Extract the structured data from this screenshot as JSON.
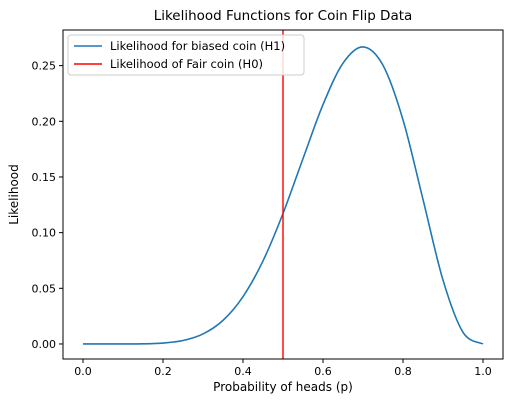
{
  "chart_data": {
    "type": "line",
    "title": "Likelihood Functions for Coin Flip Data",
    "xlabel": "Probability of heads (p)",
    "ylabel": "Likelihood",
    "xlim": [
      -0.05,
      1.05
    ],
    "ylim": [
      -0.0135,
      0.282
    ],
    "xticks": [
      0.0,
      0.2,
      0.4,
      0.6,
      0.8,
      1.0
    ],
    "xtick_labels": [
      "0.0",
      "0.2",
      "0.4",
      "0.6",
      "0.8",
      "1.0"
    ],
    "yticks": [
      0.0,
      0.05,
      0.1,
      0.15,
      0.2,
      0.25
    ],
    "ytick_labels": [
      "0.00",
      "0.05",
      "0.10",
      "0.15",
      "0.20",
      "0.25"
    ],
    "grid": false,
    "legend_position": "upper-left",
    "series": [
      {
        "name": "Likelihood for biased coin (H1)",
        "color": "#1f77b4",
        "kind": "curve",
        "x": [
          0.0,
          0.05,
          0.1,
          0.15,
          0.2,
          0.25,
          0.3,
          0.35,
          0.4,
          0.45,
          0.5,
          0.55,
          0.6,
          0.65,
          0.7,
          0.75,
          0.8,
          0.85,
          0.9,
          0.95,
          1.0
        ],
        "y": [
          0.0,
          0.0,
          0.0,
          0.0001,
          0.0008,
          0.0031,
          0.009,
          0.0212,
          0.0425,
          0.0746,
          0.1172,
          0.1665,
          0.215,
          0.2522,
          0.2668,
          0.2503,
          0.2013,
          0.1298,
          0.0574,
          0.0105,
          0.0
        ]
      },
      {
        "name": "Likelihood of Fair coin (H0)",
        "color": "#ff0000",
        "kind": "vline",
        "x": 0.5
      }
    ]
  }
}
